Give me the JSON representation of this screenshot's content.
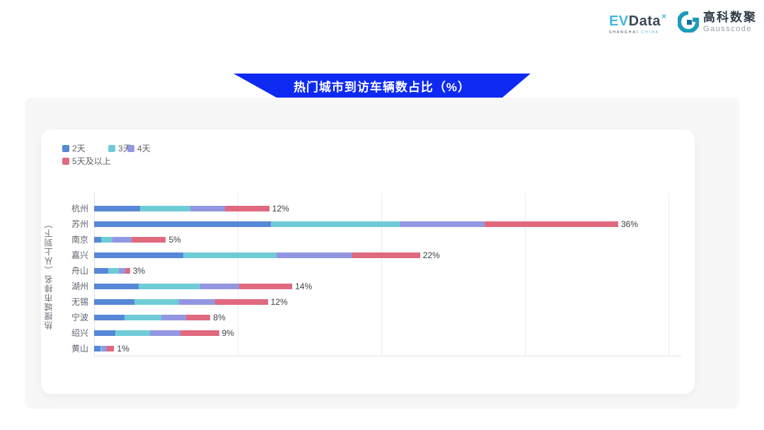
{
  "header": {
    "evdata": {
      "part1": "EV",
      "part2": "Data",
      "sup": "×",
      "sub_dark": "SHANGHAI",
      "sub_blue": "CHINA"
    },
    "gausscode": {
      "cn": "高科数聚",
      "en": "Gausscode",
      "mark_color": "#1d9cba"
    }
  },
  "banner": {
    "title": "热门城市到访车辆数占比（%）",
    "color": "#0e2af2"
  },
  "chart_data": {
    "type": "bar",
    "orientation": "horizontal-stacked",
    "title": "热门城市到访车辆数占比（%）",
    "ylabel": "热搜城市排名（从上到下）",
    "xlabel": "",
    "categories": [
      "杭州",
      "苏州",
      "南京",
      "嘉兴",
      "舟山",
      "湖州",
      "无锡",
      "宁波",
      "绍兴",
      "黄山"
    ],
    "series": [
      {
        "name": "2天",
        "color": "#5787d7",
        "values": [
          3.2,
          12.3,
          0.5,
          6.2,
          1.0,
          3.1,
          2.8,
          2.1,
          1.5,
          0.45
        ]
      },
      {
        "name": "3天",
        "color": "#6fccd7",
        "values": [
          3.5,
          9.0,
          0.8,
          6.5,
          0.7,
          4.3,
          3.1,
          2.6,
          2.4,
          0.1
        ]
      },
      {
        "name": "4天",
        "color": "#9397e2",
        "values": [
          2.4,
          5.9,
          1.3,
          5.3,
          0.45,
          2.7,
          2.5,
          1.7,
          2.1,
          0.35
        ]
      },
      {
        "name": "5天及以上",
        "color": "#e0697f",
        "values": [
          3.1,
          9.3,
          2.4,
          4.7,
          0.35,
          3.7,
          3.7,
          1.7,
          2.7,
          0.5
        ]
      }
    ],
    "total_labels": [
      "12%",
      "36%",
      "5%",
      "22%",
      "3%",
      "14%",
      "12%",
      "8%",
      "9%",
      "1%"
    ],
    "xlim": [
      0,
      40
    ],
    "x_gridline_interval": 10,
    "grid": true,
    "legend_position": "top-left"
  }
}
